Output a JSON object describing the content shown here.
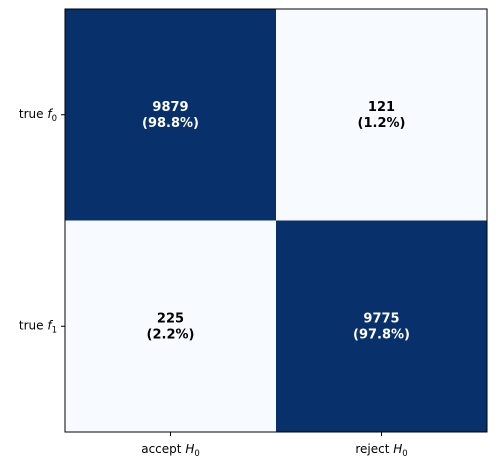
{
  "chart_data": {
    "type": "heatmap",
    "title": "",
    "xlabel": "",
    "ylabel": "",
    "grid": false,
    "legend": "none",
    "x_categories": [
      {
        "text": "accept ",
        "math": "H",
        "sub": "0"
      },
      {
        "text": "reject ",
        "math": "H",
        "sub": "0"
      }
    ],
    "y_categories": [
      {
        "text": "true ",
        "math": "f",
        "sub": "0"
      },
      {
        "text": "true ",
        "math": "f",
        "sub": "1"
      }
    ],
    "values": [
      [
        9879,
        121
      ],
      [
        225,
        9775
      ]
    ],
    "labels": [
      [
        {
          "count": "9879",
          "pct": "(98.8%)"
        },
        {
          "count": "121",
          "pct": "(1.2%)"
        }
      ],
      [
        {
          "count": "225",
          "pct": "(2.2%)"
        },
        {
          "count": "9775",
          "pct": "(97.8%)"
        }
      ]
    ],
    "colors": {
      "high": "#08306b",
      "low": "#f7fbff",
      "text_on_high": "#ffffff",
      "text_on_low": "#000000",
      "axis": "#000000"
    }
  }
}
